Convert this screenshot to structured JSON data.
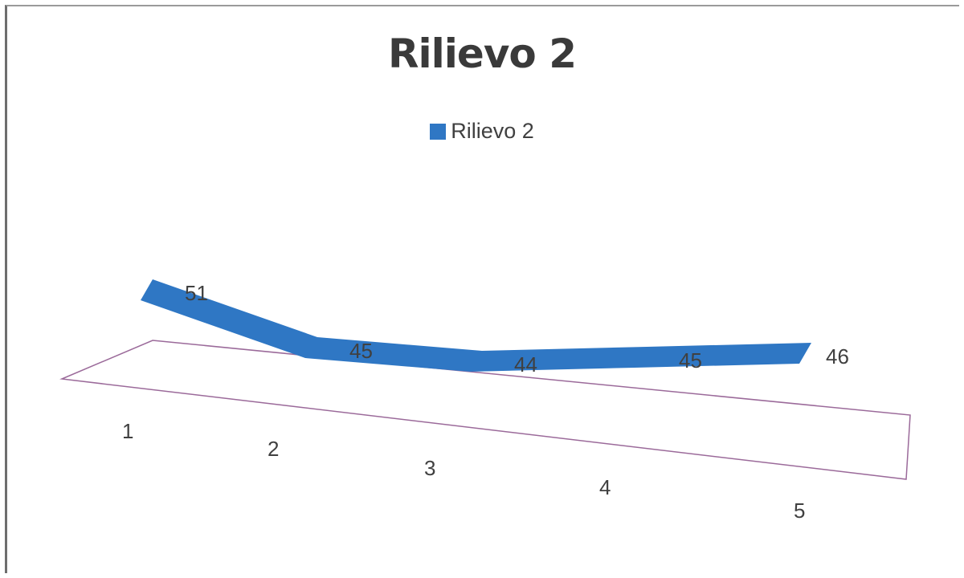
{
  "chart_data": {
    "type": "line",
    "title": "Rilievo 2",
    "categories": [
      "1",
      "2",
      "3",
      "4",
      "5"
    ],
    "series": [
      {
        "name": "Rilievo 2",
        "values": [
          51,
          45,
          44,
          45,
          46
        ],
        "color": "#2f77c4"
      }
    ],
    "data_labels": [
      "51",
      "45",
      "44",
      "45",
      "46"
    ],
    "legend": "top-center",
    "grid": false,
    "xlabel": "",
    "ylabel": "",
    "style": "3d-ribbon",
    "frame_color": "#9b6a9a"
  }
}
